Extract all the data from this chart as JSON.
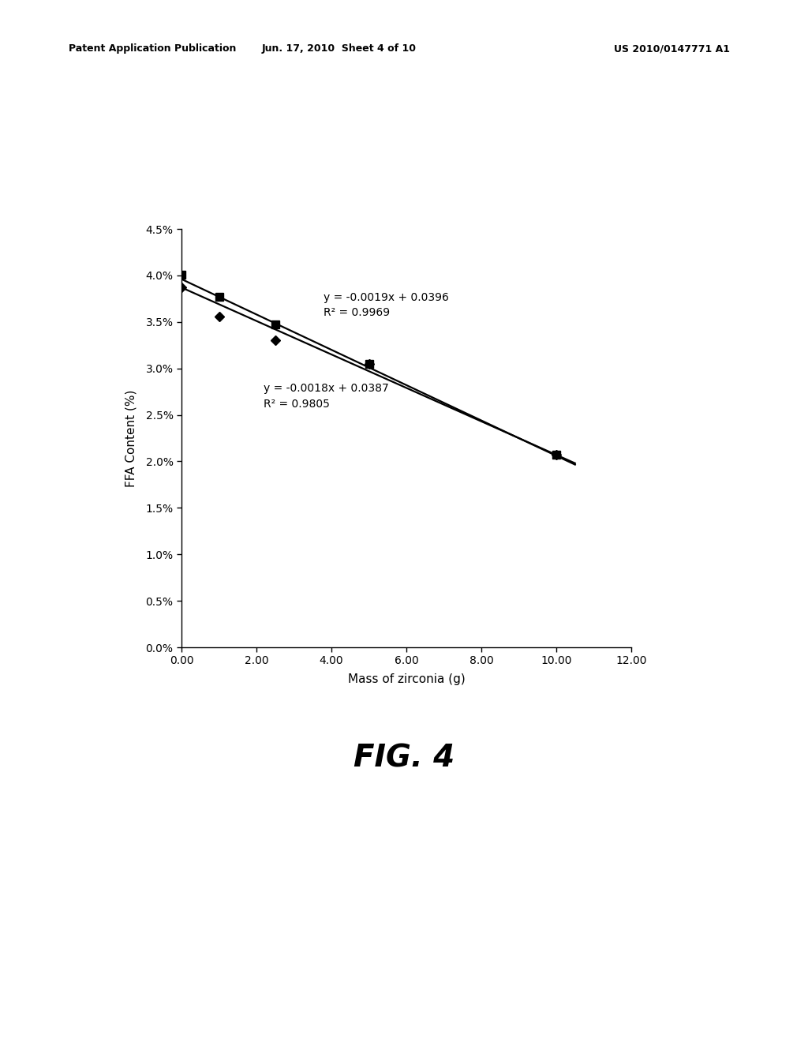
{
  "series1_x": [
    0,
    1,
    2.5,
    5,
    10
  ],
  "series1_y": [
    0.0401,
    0.0377,
    0.0347,
    0.0305,
    0.0207
  ],
  "series2_x": [
    0,
    1,
    2.5,
    5,
    10
  ],
  "series2_y": [
    0.0387,
    0.0356,
    0.033,
    0.0305,
    0.0207
  ],
  "line1_eq": "y = -0.0019x + 0.0396",
  "line1_r2": "R² = 0.9969",
  "line2_eq": "y = -0.0018x + 0.0387",
  "line2_r2": "R² = 0.9805",
  "line1_slope": -0.0019,
  "line1_intercept": 0.0396,
  "line2_slope": -0.0018,
  "line2_intercept": 0.0387,
  "xlabel": "Mass of zirconia (g)",
  "ylabel": "FFA Content (%)",
  "fig_label": "FIG. 4",
  "header_left": "Patent Application Publication",
  "header_mid": "Jun. 17, 2010  Sheet 4 of 10",
  "header_right": "US 2010/0147771 A1",
  "xlim": [
    0,
    12
  ],
  "ylim": [
    0,
    0.045
  ],
  "xticks": [
    0.0,
    2.0,
    4.0,
    6.0,
    8.0,
    10.0,
    12.0
  ],
  "ytick_vals": [
    0.0,
    0.005,
    0.01,
    0.015,
    0.02,
    0.025,
    0.03,
    0.035,
    0.04,
    0.045
  ],
  "ytick_labels": [
    "0.0%",
    "0.5%",
    "1.0%",
    "1.5%",
    "2.0%",
    "2.5%",
    "3.0%",
    "3.5%",
    "4.0%",
    "4.5%"
  ],
  "bg_color": "#ffffff",
  "line_color": "#000000",
  "marker_square": "s",
  "marker_diamond": "D"
}
